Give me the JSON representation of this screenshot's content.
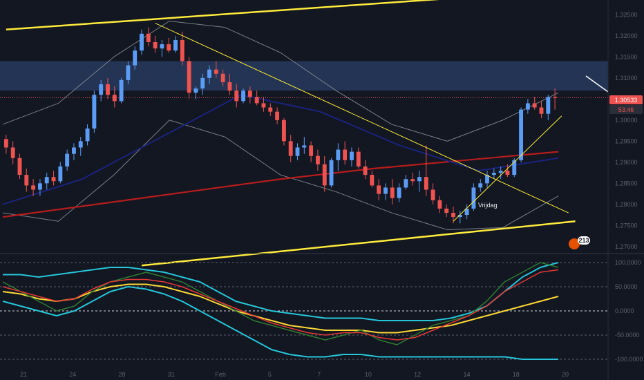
{
  "chart_data": {
    "type": "candlestick",
    "symbol_hint": "GBPUSD",
    "price_axis_ticks": [
      1.325,
      1.32,
      1.315,
      1.31,
      1.305,
      1.3,
      1.295,
      1.29,
      1.285,
      1.28,
      1.275,
      1.27
    ],
    "price_range": [
      1.2685,
      1.3285
    ],
    "last_price": "1.30533",
    "countdown": "53:46",
    "date_ticks": [
      "21",
      "24",
      "28",
      "31",
      "Feb",
      "5",
      "7",
      "10",
      "12",
      "14",
      "18",
      "20"
    ],
    "annotation": "Vrijdag",
    "badge_value": "213",
    "oscillator_range": [
      -100,
      100
    ],
    "oscillator_ticks": [
      100,
      50,
      0,
      -50,
      -100
    ],
    "colors": {
      "up": "#5b9cf6",
      "down": "#ef5350",
      "trendline": "#ffeb3b",
      "ma_long": "#b71c1c",
      "ma_mid": "#1a237e",
      "bands": "#9598a1",
      "zone": "#2a3f66",
      "osc_fast": "#2e7d32",
      "osc_signal": "#e53935",
      "osc_slow": "#fdd835",
      "osc_band": "#26c6da"
    },
    "candles": [
      [
        1.2955,
        1.2965,
        1.292,
        1.2935
      ],
      [
        1.2935,
        1.295,
        1.2895,
        1.291
      ],
      [
        1.291,
        1.292,
        1.286,
        1.287
      ],
      [
        1.287,
        1.2885,
        1.283,
        1.2845
      ],
      [
        1.2845,
        1.286,
        1.282,
        1.2835
      ],
      [
        1.2835,
        1.286,
        1.282,
        1.285
      ],
      [
        1.285,
        1.2875,
        1.2835,
        1.2865
      ],
      [
        1.2865,
        1.288,
        1.2845,
        1.2855
      ],
      [
        1.2855,
        1.29,
        1.285,
        1.289
      ],
      [
        1.289,
        1.293,
        1.288,
        1.292
      ],
      [
        1.292,
        1.2945,
        1.2905,
        1.2935
      ],
      [
        1.2935,
        1.296,
        1.2915,
        1.295
      ],
      [
        1.295,
        1.299,
        1.294,
        1.298
      ],
      [
        1.298,
        1.307,
        1.297,
        1.306
      ],
      [
        1.306,
        1.3095,
        1.3045,
        1.3085
      ],
      [
        1.3085,
        1.31,
        1.305,
        1.306
      ],
      [
        1.306,
        1.308,
        1.303,
        1.3045
      ],
      [
        1.3045,
        1.31,
        1.304,
        1.3095
      ],
      [
        1.3095,
        1.314,
        1.3085,
        1.313
      ],
      [
        1.313,
        1.3175,
        1.312,
        1.3165
      ],
      [
        1.3165,
        1.3215,
        1.3155,
        1.3205
      ],
      [
        1.3205,
        1.322,
        1.3175,
        1.3185
      ],
      [
        1.3185,
        1.32,
        1.316,
        1.317
      ],
      [
        1.317,
        1.319,
        1.315,
        1.318
      ],
      [
        1.318,
        1.3195,
        1.316,
        1.3165
      ],
      [
        1.3165,
        1.32,
        1.316,
        1.319
      ],
      [
        1.319,
        1.321,
        1.313,
        1.314
      ],
      [
        1.314,
        1.315,
        1.305,
        1.3065
      ],
      [
        1.3065,
        1.308,
        1.305,
        1.3075
      ],
      [
        1.3075,
        1.311,
        1.306,
        1.31
      ],
      [
        1.31,
        1.313,
        1.3085,
        1.312
      ],
      [
        1.312,
        1.314,
        1.31,
        1.311
      ],
      [
        1.311,
        1.312,
        1.308,
        1.309
      ],
      [
        1.309,
        1.311,
        1.306,
        1.307
      ],
      [
        1.307,
        1.3085,
        1.303,
        1.3045
      ],
      [
        1.3045,
        1.3075,
        1.304,
        1.307
      ],
      [
        1.307,
        1.308,
        1.304,
        1.3055
      ],
      [
        1.3055,
        1.307,
        1.3035,
        1.304
      ],
      [
        1.304,
        1.3055,
        1.302,
        1.303
      ],
      [
        1.303,
        1.304,
        1.301,
        1.302
      ],
      [
        1.302,
        1.303,
        1.299,
        1.3
      ],
      [
        1.3,
        1.3005,
        1.294,
        1.295
      ],
      [
        1.295,
        1.2965,
        1.29,
        1.2915
      ],
      [
        1.2915,
        1.2945,
        1.2905,
        1.2935
      ],
      [
        1.2935,
        1.296,
        1.292,
        1.294
      ],
      [
        1.294,
        1.295,
        1.29,
        1.2915
      ],
      [
        1.2915,
        1.293,
        1.288,
        1.2895
      ],
      [
        1.2895,
        1.2915,
        1.283,
        1.2845
      ],
      [
        1.2845,
        1.291,
        1.284,
        1.2905
      ],
      [
        1.2905,
        1.2945,
        1.288,
        1.293
      ],
      [
        1.293,
        1.295,
        1.2895,
        1.2905
      ],
      [
        1.2905,
        1.2935,
        1.289,
        1.2925
      ],
      [
        1.2925,
        1.2935,
        1.2885,
        1.289
      ],
      [
        1.289,
        1.2905,
        1.286,
        1.287
      ],
      [
        1.287,
        1.288,
        1.284,
        1.2845
      ],
      [
        1.2845,
        1.286,
        1.281,
        1.2825
      ],
      [
        1.2825,
        1.285,
        1.281,
        1.284
      ],
      [
        1.284,
        1.286,
        1.28,
        1.2815
      ],
      [
        1.2815,
        1.285,
        1.2805,
        1.284
      ],
      [
        1.284,
        1.287,
        1.2835,
        1.286
      ],
      [
        1.286,
        1.2875,
        1.2845,
        1.2855
      ],
      [
        1.2855,
        1.288,
        1.283,
        1.2865
      ],
      [
        1.2865,
        1.294,
        1.282,
        1.2835
      ],
      [
        1.2835,
        1.285,
        1.28,
        1.281
      ],
      [
        1.281,
        1.282,
        1.278,
        1.279
      ],
      [
        1.279,
        1.28,
        1.277,
        1.278
      ],
      [
        1.278,
        1.2795,
        1.2755,
        1.277
      ],
      [
        1.277,
        1.2785,
        1.2755,
        1.2775
      ],
      [
        1.2775,
        1.28,
        1.2765,
        1.279
      ],
      [
        1.279,
        1.285,
        1.2785,
        1.284
      ],
      [
        1.284,
        1.286,
        1.283,
        1.285
      ],
      [
        1.285,
        1.288,
        1.284,
        1.287
      ],
      [
        1.287,
        1.2885,
        1.286,
        1.2875
      ],
      [
        1.2875,
        1.289,
        1.286,
        1.288
      ],
      [
        1.288,
        1.2895,
        1.2865,
        1.287
      ],
      [
        1.287,
        1.291,
        1.2865,
        1.2905
      ],
      [
        1.2905,
        1.303,
        1.29,
        1.3025
      ],
      [
        1.3025,
        1.305,
        1.3015,
        1.304
      ],
      [
        1.304,
        1.3055,
        1.3025,
        1.303
      ],
      [
        1.303,
        1.3045,
        1.3005,
        1.3015
      ],
      [
        1.3015,
        1.306,
        1.3,
        1.3055
      ],
      [
        1.3055,
        1.3075,
        1.3025,
        1.3053
      ]
    ],
    "ma_long": [
      1.277,
      1.28,
      1.283,
      1.286,
      1.2885,
      1.2905,
      1.2925
    ],
    "ma_mid": [
      1.28,
      1.286,
      1.296,
      1.306,
      1.302,
      1.294,
      1.288,
      1.291
    ],
    "band_upper": [
      1.299,
      1.304,
      1.315,
      1.3235,
      1.322,
      1.316,
      1.307,
      1.299,
      1.295,
      1.3,
      1.3065
    ],
    "band_lower": [
      1.278,
      1.276,
      1.287,
      1.3,
      1.296,
      1.287,
      1.283,
      1.278,
      1.274,
      1.2745,
      1.282
    ],
    "trendlines": [
      {
        "p1": [
          0,
          1.3215
        ],
        "p2": [
          71,
          1.3295
        ]
      },
      {
        "p1": [
          20,
          1.2655
        ],
        "p2": [
          84,
          1.276
        ]
      },
      {
        "p1": [
          22,
          1.323
        ],
        "p2": [
          83,
          1.278
        ]
      },
      {
        "p1": [
          66,
          1.276
        ],
        "p2": [
          82,
          1.301
        ]
      }
    ],
    "resistance_zone": [
      1.307,
      1.314
    ],
    "osc_fast": [
      60,
      40,
      20,
      0,
      10,
      40,
      60,
      70,
      80,
      70,
      60,
      40,
      20,
      0,
      -20,
      -30,
      -40,
      -50,
      -60,
      -50,
      -40,
      -60,
      -70,
      -50,
      -30,
      -20,
      -10,
      20,
      60,
      80,
      100,
      90
    ],
    "osc_signal": [
      50,
      40,
      30,
      20,
      25,
      45,
      60,
      65,
      65,
      60,
      50,
      35,
      20,
      5,
      -10,
      -25,
      -35,
      -45,
      -50,
      -45,
      -45,
      -55,
      -60,
      -55,
      -40,
      -25,
      -10,
      10,
      40,
      60,
      80,
      85
    ],
    "osc_slow": [
      40,
      35,
      25,
      20,
      25,
      40,
      50,
      55,
      55,
      50,
      40,
      30,
      15,
      0,
      -10,
      -20,
      -30,
      -35,
      -40,
      -40,
      -40,
      -45,
      -45,
      -40,
      -35,
      -30,
      -20,
      -10,
      0,
      10,
      20,
      30
    ],
    "osc_upper": [
      75,
      75,
      70,
      75,
      80,
      85,
      90,
      90,
      85,
      80,
      70,
      60,
      40,
      20,
      10,
      0,
      -5,
      -10,
      -15,
      -15,
      -15,
      -20,
      -20,
      -20,
      -20,
      -15,
      -5,
      10,
      40,
      70,
      90,
      100
    ],
    "osc_lower": [
      20,
      10,
      0,
      -10,
      0,
      20,
      40,
      50,
      45,
      35,
      20,
      0,
      -20,
      -40,
      -60,
      -80,
      -90,
      -95,
      -95,
      -90,
      -90,
      -95,
      -95,
      -95,
      -95,
      -95,
      -95,
      -95,
      -95,
      -100,
      -100,
      -100
    ]
  }
}
